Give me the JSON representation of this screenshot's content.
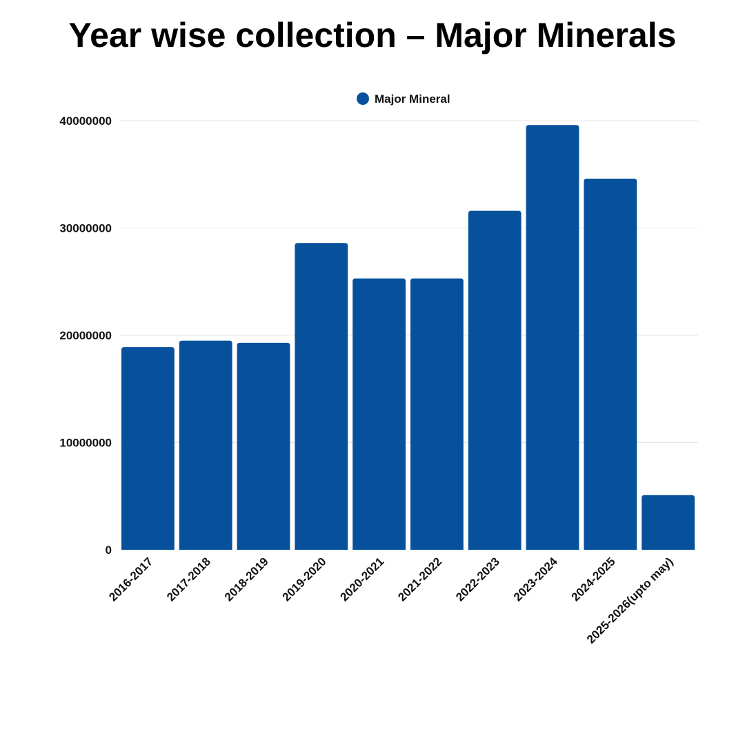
{
  "chart_data": {
    "type": "bar",
    "title": "Year wise collection – Major Minerals",
    "categories": [
      "2016-2017",
      "2017-2018",
      "2018-2019",
      "2019-2020",
      "2020-2021",
      "2021-2022",
      "2022-2023",
      "2023-2024",
      "2024-2025",
      "2025-2026(upto may)"
    ],
    "series": [
      {
        "name": "Major Mineral",
        "values": [
          18900000,
          19500000,
          19300000,
          28600000,
          25300000,
          25300000,
          31600000,
          39600000,
          34600000,
          5100000
        ]
      }
    ],
    "ylim": [
      0,
      40000000
    ],
    "yticks": [
      "0",
      "10000000",
      "20000000",
      "30000000",
      "40000000"
    ],
    "grid": true,
    "legend": "top-center",
    "colors": {
      "bar": "#07519C",
      "grid": "#e6e6e6"
    }
  }
}
